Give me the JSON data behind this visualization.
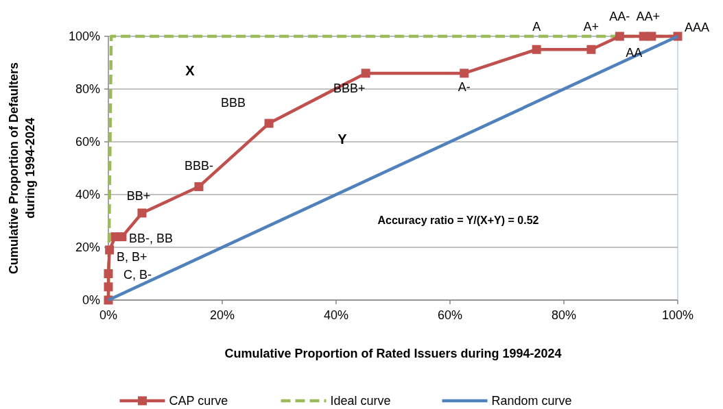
{
  "chart_data": {
    "type": "line",
    "xlabel": "Cumulative Proportion of Rated Issuers during 1994-2024",
    "ylabel": "Cumulative Proportion of Defaulters during 1994-2024",
    "xlim": [
      0,
      100
    ],
    "ylim": [
      0,
      100
    ],
    "xticks": [
      {
        "value": 0,
        "label": "0%"
      },
      {
        "value": 20,
        "label": "20%"
      },
      {
        "value": 40,
        "label": "40%"
      },
      {
        "value": 60,
        "label": "60%"
      },
      {
        "value": 80,
        "label": "80%"
      },
      {
        "value": 100,
        "label": "100%"
      }
    ],
    "yticks": [
      {
        "value": 0,
        "label": "0%"
      },
      {
        "value": 20,
        "label": "20%"
      },
      {
        "value": 40,
        "label": "40%"
      },
      {
        "value": 60,
        "label": "60%"
      },
      {
        "value": 80,
        "label": "80%"
      },
      {
        "value": 100,
        "label": "100%"
      }
    ],
    "grid": "y",
    "legend": "bottom",
    "series": [
      {
        "name": "CAP curve",
        "color": "#c0504d",
        "marker": "square",
        "line_style": "solid",
        "x": [
          0,
          0,
          0,
          0.2,
          1.2,
          2.4,
          5.9,
          15.9,
          28.2,
          45.2,
          62.5,
          75.2,
          84.8,
          89.8,
          94,
          95.4,
          100
        ],
        "values": [
          0,
          5,
          10,
          19,
          24,
          24,
          33,
          43,
          67,
          86,
          86,
          95,
          95,
          100,
          100,
          100,
          100
        ]
      },
      {
        "name": "Ideal curve",
        "color": "#9bbb59",
        "marker": "none",
        "line_style": "dashed",
        "x": [
          0,
          0.5,
          100
        ],
        "values": [
          0,
          100,
          100
        ]
      },
      {
        "name": "Random curve",
        "color": "#4f81bd",
        "marker": "none",
        "line_style": "solid",
        "x": [
          0,
          100
        ],
        "values": [
          0,
          100
        ]
      }
    ],
    "annotations": [
      {
        "text": "C, B-",
        "x": 0,
        "y": 10
      },
      {
        "text": "B, B+",
        "x": 0,
        "y": 19
      },
      {
        "text": "BB-, BB",
        "x": 2.4,
        "y": 24
      },
      {
        "text": "BB+",
        "x": 5.9,
        "y": 33
      },
      {
        "text": "BBB-",
        "x": 15.9,
        "y": 43
      },
      {
        "text": "BBB",
        "x": 28.2,
        "y": 67
      },
      {
        "text": "BBB+",
        "x": 45.2,
        "y": 86
      },
      {
        "text": "A-",
        "x": 62.5,
        "y": 86
      },
      {
        "text": "A",
        "x": 75.2,
        "y": 95
      },
      {
        "text": "A+",
        "x": 84.8,
        "y": 95
      },
      {
        "text": "AA-",
        "x": 89.8,
        "y": 100
      },
      {
        "text": "AA+",
        "x": 95.4,
        "y": 100
      },
      {
        "text": "AA",
        "x": 94,
        "y": 100
      },
      {
        "text": "AAA",
        "x": 100,
        "y": 100
      },
      "X",
      "Y",
      "Accuracy ratio = Y/(X+Y) = 0.52"
    ]
  }
}
